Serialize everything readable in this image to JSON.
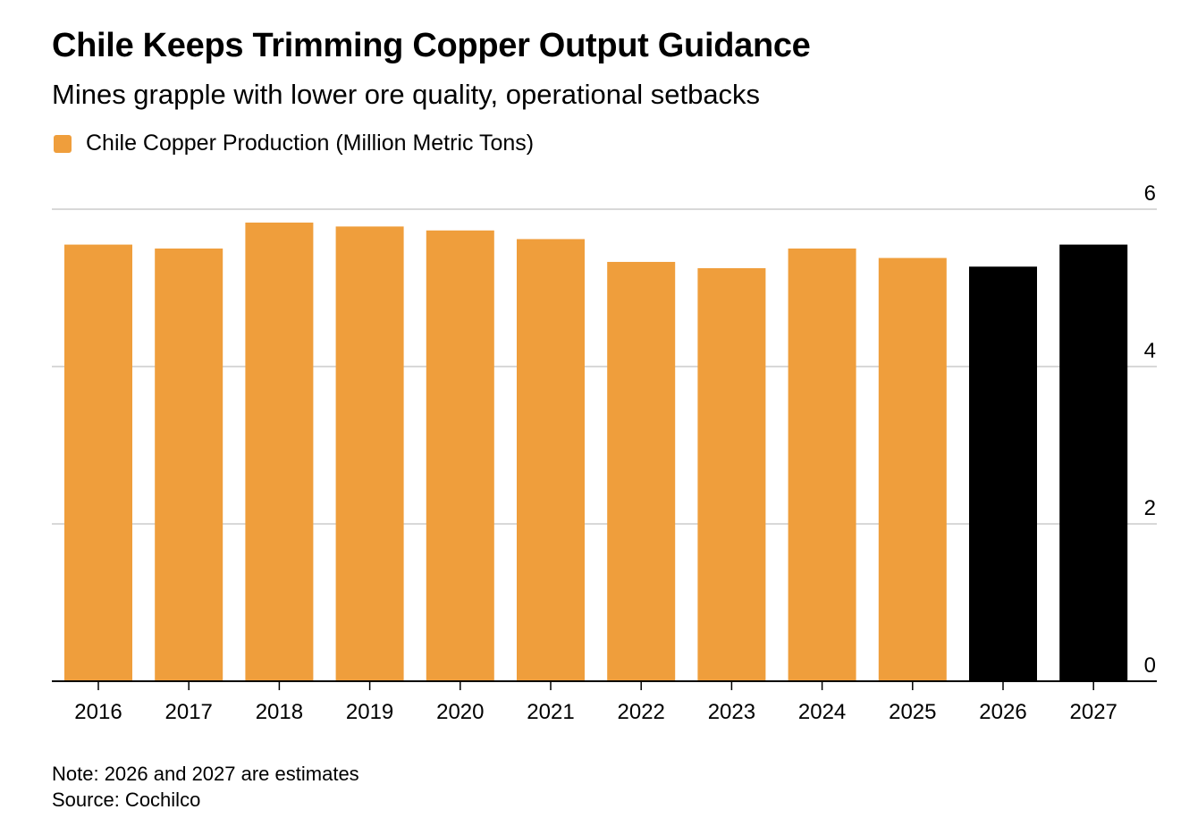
{
  "header": {
    "title": "Chile Keeps Trimming Copper Output Guidance",
    "subtitle": "Mines grapple with lower ore quality, operational setbacks"
  },
  "legend": {
    "label": "Chile Copper Production (Million Metric Tons)"
  },
  "colors": {
    "actual": "#EF9E3C",
    "estimate": "#000000",
    "grid": "#cccccc",
    "axis": "#000000"
  },
  "chart_data": {
    "type": "bar",
    "categories": [
      "2016",
      "2017",
      "2018",
      "2019",
      "2020",
      "2021",
      "2022",
      "2023",
      "2024",
      "2025",
      "2026",
      "2027"
    ],
    "series": [
      {
        "name": "Chile Copper Production (Million Metric Tons)",
        "values": [
          5.55,
          5.5,
          5.83,
          5.78,
          5.73,
          5.62,
          5.33,
          5.25,
          5.5,
          5.38,
          5.27,
          5.55
        ]
      }
    ],
    "estimated_categories": [
      "2026",
      "2027"
    ],
    "ylim": [
      0,
      6
    ],
    "yticks": [
      "0",
      "2",
      "4",
      "6"
    ],
    "ytick_values": [
      0,
      2,
      4,
      6
    ],
    "xlabel": "",
    "ylabel": "",
    "y_axis_position": "right",
    "grid": true,
    "legend_position": "top-left"
  },
  "footer": {
    "note": "Note: 2026 and 2027 are estimates",
    "source": "Source: Cochilco"
  }
}
